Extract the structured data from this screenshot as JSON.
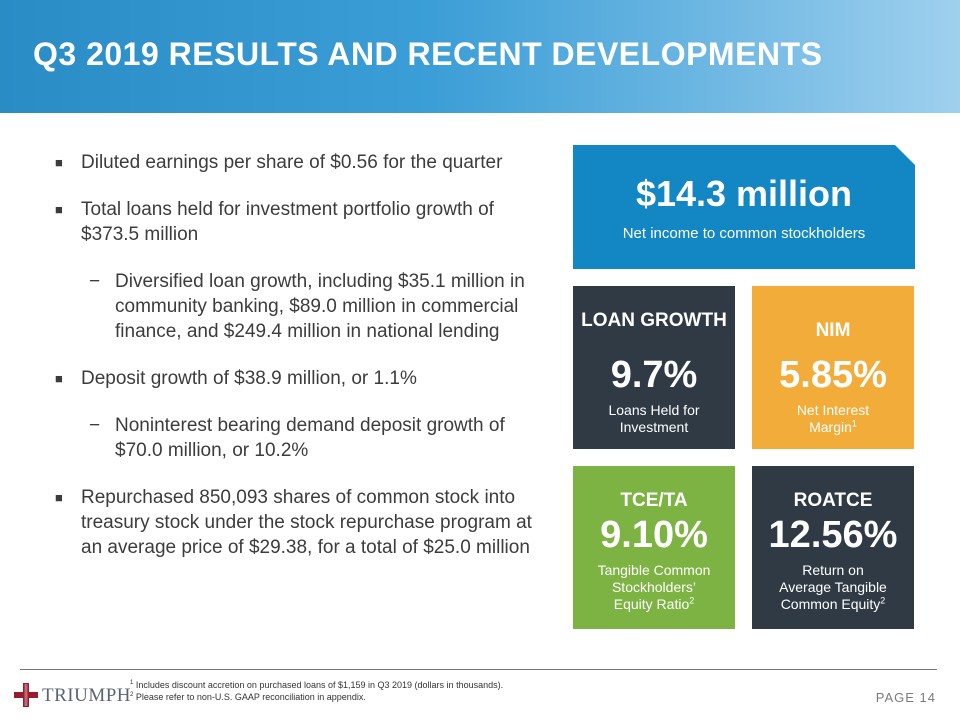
{
  "header": {
    "title": "Q3 2019 RESULTS AND RECENT DEVELOPMENTS"
  },
  "bullets": [
    {
      "level": 1,
      "marker": "■",
      "text": "Diluted earnings per share of $0.56 for the quarter"
    },
    {
      "level": 1,
      "marker": "■",
      "text": "Total loans held for investment portfolio growth of $373.5 million"
    },
    {
      "level": 2,
      "marker": "−",
      "text": "Diversified loan growth, including $35.1 million in community banking, $89.0 million in commercial finance, and $249.4 million in national lending"
    },
    {
      "level": 1,
      "marker": "■",
      "text": "Deposit growth of $38.9 million, or 1.1%"
    },
    {
      "level": 2,
      "marker": "−",
      "text": "Noninterest bearing demand deposit growth of $70.0 million, or 10.2%"
    },
    {
      "level": 1,
      "marker": "■",
      "text": "Repurchased 850,093 shares of common stock into treasury stock under the stock repurchase program at an average price of $29.38, for a total of $25.0 million"
    }
  ],
  "highlight": {
    "value": "$14.3 million",
    "label": "Net income to common stockholders",
    "color": "#1287c4"
  },
  "tiles": {
    "loan_growth": {
      "title": "LOAN GROWTH",
      "value": "9.7%",
      "desc": "Loans Held for Investment",
      "color": "#2f3a45"
    },
    "nim": {
      "title": "NIM",
      "value": "5.85%",
      "desc": "Net Interest Margin",
      "sup": "1",
      "color": "#f2ac39"
    },
    "tce_ta": {
      "title": "TCE/TA",
      "value": "9.10%",
      "desc": "Tangible Common Stockholders’ Equity Ratio",
      "sup": "2",
      "color": "#7db343"
    },
    "roatce": {
      "title": "ROATCE",
      "value": "12.56%",
      "desc": "Return on Average Tangible Common Equity",
      "sup": "2",
      "color": "#2f3a45"
    }
  },
  "footer": {
    "logo_text": "TRIUMPH",
    "footnotes": [
      {
        "num": "1",
        "text": "Includes discount accretion on purchased loans of $1,159 in Q3 2019 (dollars in thousands)."
      },
      {
        "num": "2",
        "text": "Please refer to non-U.S. GAAP reconciliation in appendix."
      }
    ],
    "page_label": "PAGE 14"
  }
}
